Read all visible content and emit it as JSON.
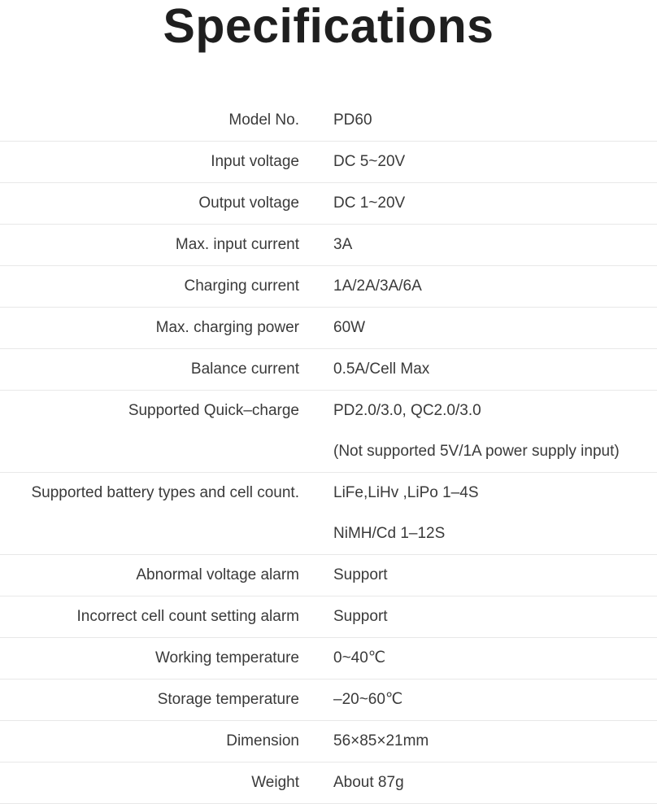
{
  "page": {
    "title": "Specifications"
  },
  "colors": {
    "background": "#ffffff",
    "title_text": "#1f1f1f",
    "body_text": "#3a3a3a",
    "divider": "#e8e8e8"
  },
  "table": {
    "rows": [
      {
        "label": "Model No.",
        "values": [
          "PD60"
        ]
      },
      {
        "label": "Input voltage",
        "values": [
          "DC 5~20V"
        ]
      },
      {
        "label": "Output voltage",
        "values": [
          "DC 1~20V"
        ]
      },
      {
        "label": "Max. input current",
        "values": [
          "3A"
        ]
      },
      {
        "label": "Charging current",
        "values": [
          "1A/2A/3A/6A"
        ]
      },
      {
        "label": "Max. charging power",
        "values": [
          "60W"
        ]
      },
      {
        "label": "Balance current",
        "values": [
          "0.5A/Cell Max"
        ]
      },
      {
        "label": "Supported Quick–charge",
        "values": [
          "PD2.0/3.0, QC2.0/3.0",
          "(Not supported 5V/1A power supply input)"
        ]
      },
      {
        "label": "Supported battery types and cell count.",
        "values": [
          "LiFe,LiHv ,LiPo 1–4S",
          "NiMH/Cd 1–12S"
        ]
      },
      {
        "label": "Abnormal voltage alarm",
        "values": [
          "Support"
        ]
      },
      {
        "label": "Incorrect cell count setting alarm",
        "values": [
          "Support"
        ]
      },
      {
        "label": "Working temperature",
        "values": [
          "0~40℃"
        ]
      },
      {
        "label": "Storage temperature",
        "values": [
          "–20~60℃"
        ]
      },
      {
        "label": "Dimension",
        "values": [
          "56×85×21mm"
        ]
      },
      {
        "label": "Weight",
        "values": [
          "About 87g"
        ]
      }
    ]
  }
}
